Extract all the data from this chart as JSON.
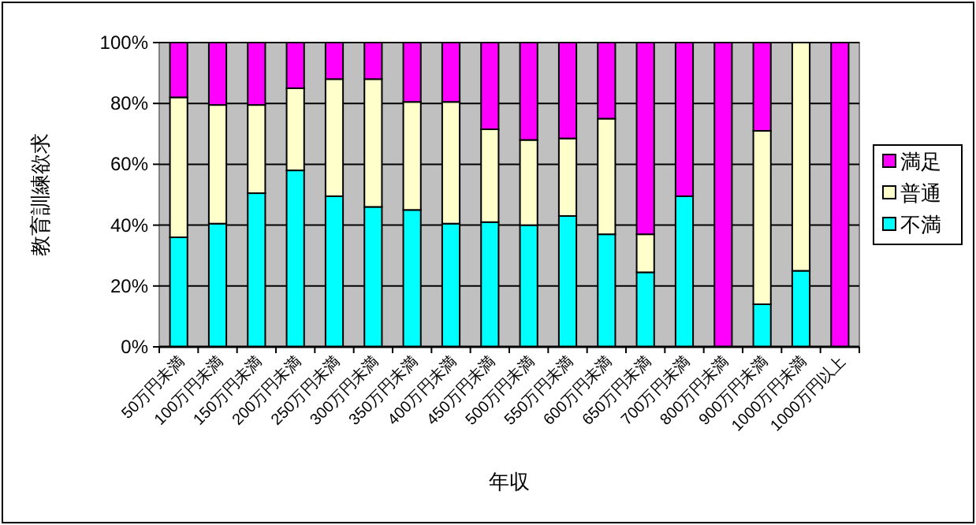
{
  "chart_data": {
    "type": "bar",
    "stacked": true,
    "xlabel": "年収",
    "ylabel": "教育訓練欲求",
    "categories": [
      "50万円未満",
      "100万円未満",
      "150万円未満",
      "200万円未満",
      "250万円未満",
      "300万円未満",
      "350万円未満",
      "400万円未満",
      "450万円未満",
      "500万円未満",
      "550万円未満",
      "600万円未満",
      "650万円未満",
      "700万円未満",
      "800万円未満",
      "900万円未満",
      "1000万円未満",
      "1000万円以上"
    ],
    "series": [
      {
        "name": "不満",
        "color": "#00ffff",
        "values": [
          36,
          40.5,
          50.5,
          58,
          49.5,
          46,
          45,
          40.5,
          41,
          40,
          43,
          37,
          24.5,
          49.5,
          0,
          14,
          25,
          0
        ]
      },
      {
        "name": "普通",
        "color": "#ffffcc",
        "values": [
          46,
          39,
          29,
          27,
          38.5,
          42,
          35.5,
          40,
          30.5,
          28,
          25.5,
          38,
          12.5,
          0,
          0,
          57,
          75,
          0
        ]
      },
      {
        "name": "満足",
        "color": "#ff00ff",
        "values": [
          18,
          20.5,
          20.5,
          15,
          12,
          12,
          19.5,
          19.5,
          28.5,
          32,
          31.5,
          25,
          63,
          50.5,
          100,
          29,
          0,
          100
        ]
      }
    ],
    "ylim": [
      0,
      100
    ],
    "yticks": [
      {
        "value": 0,
        "label": "0%"
      },
      {
        "value": 20,
        "label": "20%"
      },
      {
        "value": 40,
        "label": "40%"
      },
      {
        "value": 60,
        "label": "60%"
      },
      {
        "value": 80,
        "label": "80%"
      },
      {
        "value": 100,
        "label": "100%"
      }
    ],
    "grid": "y",
    "legend": "right"
  }
}
